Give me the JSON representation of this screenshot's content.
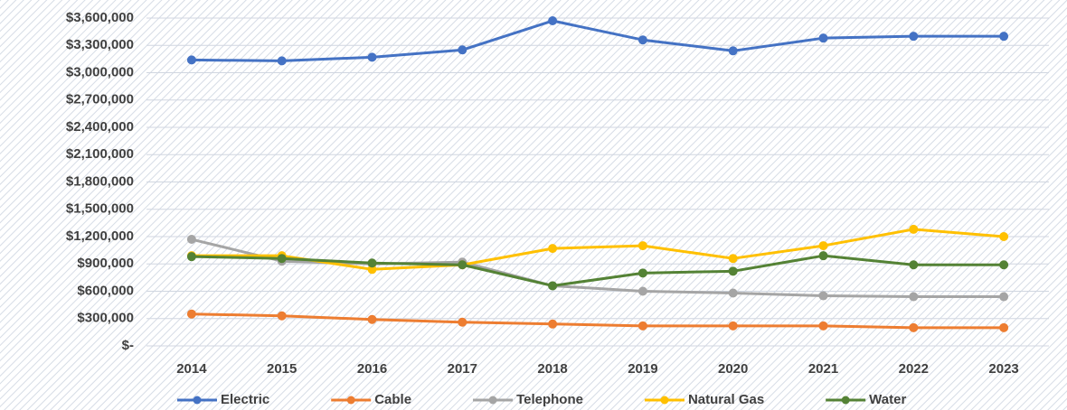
{
  "chart_data": {
    "type": "line",
    "categories": [
      "2014",
      "2015",
      "2016",
      "2017",
      "2018",
      "2019",
      "2020",
      "2021",
      "2022",
      "2023"
    ],
    "series": [
      {
        "name": "Electric",
        "color": "#4472c4",
        "values": [
          3140000,
          3130000,
          3170000,
          3250000,
          3570000,
          3360000,
          3240000,
          3380000,
          3400000,
          3400000
        ]
      },
      {
        "name": "Cable",
        "color": "#ed7d31",
        "values": [
          350000,
          330000,
          290000,
          260000,
          240000,
          220000,
          220000,
          220000,
          200000,
          200000
        ]
      },
      {
        "name": "Telephone",
        "color": "#a5a5a5",
        "values": [
          1170000,
          930000,
          900000,
          920000,
          660000,
          600000,
          580000,
          550000,
          540000,
          540000
        ]
      },
      {
        "name": "Natural Gas",
        "color": "#ffc000",
        "values": [
          990000,
          990000,
          840000,
          890000,
          1070000,
          1100000,
          960000,
          1100000,
          1280000,
          1200000
        ]
      },
      {
        "name": "Water",
        "color": "#548235",
        "values": [
          980000,
          960000,
          910000,
          890000,
          660000,
          800000,
          820000,
          990000,
          890000,
          890000
        ]
      }
    ],
    "ylim": [
      0,
      3600000
    ],
    "yticks": [
      {
        "value": 0,
        "label": "$-"
      },
      {
        "value": 300000,
        "label": "$300,000"
      },
      {
        "value": 600000,
        "label": "$600,000"
      },
      {
        "value": 900000,
        "label": "$900,000"
      },
      {
        "value": 1200000,
        "label": "$1,200,000"
      },
      {
        "value": 1500000,
        "label": "$1,500,000"
      },
      {
        "value": 1800000,
        "label": "$1,800,000"
      },
      {
        "value": 2100000,
        "label": "$2,100,000"
      },
      {
        "value": 2400000,
        "label": "$2,400,000"
      },
      {
        "value": 2700000,
        "label": "$2,700,000"
      },
      {
        "value": 3000000,
        "label": "$3,000,000"
      },
      {
        "value": 3300000,
        "label": "$3,300,000"
      },
      {
        "value": 3600000,
        "label": "$3,600,000"
      }
    ],
    "grid": true,
    "legend": "bottom"
  }
}
